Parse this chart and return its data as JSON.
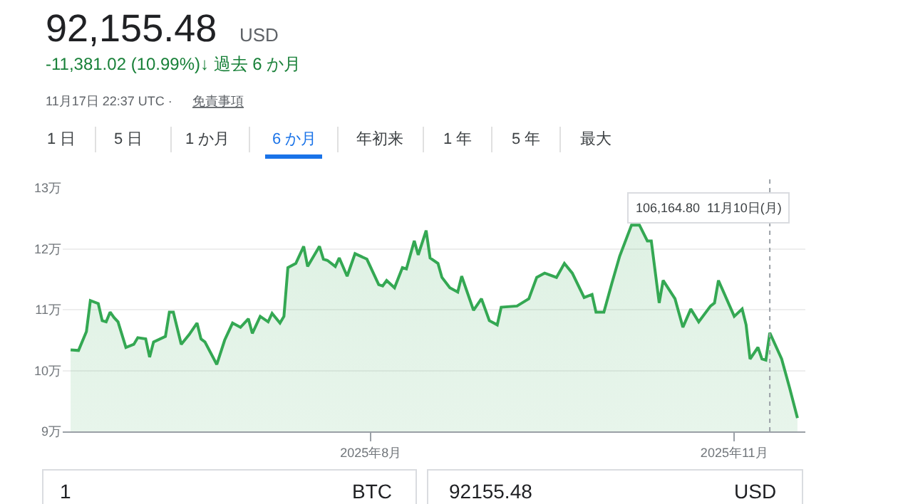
{
  "chart_data": {
    "type": "area",
    "title": "92,155.48",
    "subtitle": "USD",
    "x": [
      "2025-05-17",
      "2025-05-19",
      "2025-05-21",
      "2025-05-22",
      "2025-05-24",
      "2025-05-25",
      "2025-05-26",
      "2025-05-27",
      "2025-05-28",
      "2025-05-29",
      "2025-05-31",
      "2025-06-02",
      "2025-06-03",
      "2025-06-05",
      "2025-06-06",
      "2025-06-07",
      "2025-06-10",
      "2025-06-11",
      "2025-06-12",
      "2025-06-14",
      "2025-06-16",
      "2025-06-18",
      "2025-06-19",
      "2025-06-20",
      "2025-06-23",
      "2025-06-25",
      "2025-06-27",
      "2025-06-29",
      "2025-07-01",
      "2025-07-02",
      "2025-07-04",
      "2025-07-06",
      "2025-07-07",
      "2025-07-09",
      "2025-07-10",
      "2025-07-11",
      "2025-07-13",
      "2025-07-15",
      "2025-07-16",
      "2025-07-19",
      "2025-07-20",
      "2025-07-21",
      "2025-07-23",
      "2025-07-24",
      "2025-07-26",
      "2025-07-28",
      "2025-07-31",
      "2025-08-03",
      "2025-08-04",
      "2025-08-05",
      "2025-08-07",
      "2025-08-09",
      "2025-08-10",
      "2025-08-12",
      "2025-08-13",
      "2025-08-15",
      "2025-08-16",
      "2025-08-18",
      "2025-08-19",
      "2025-08-21",
      "2025-08-23",
      "2025-08-24",
      "2025-08-27",
      "2025-08-29",
      "2025-08-31",
      "2025-09-02",
      "2025-09-03",
      "2025-09-07",
      "2025-09-10",
      "2025-09-12",
      "2025-09-14",
      "2025-09-17",
      "2025-09-19",
      "2025-09-21",
      "2025-09-24",
      "2025-09-26",
      "2025-09-27",
      "2025-09-29",
      "2025-10-01",
      "2025-10-03",
      "2025-10-06",
      "2025-10-08",
      "2025-10-10",
      "2025-10-11",
      "2025-10-13",
      "2025-10-14",
      "2025-10-17",
      "2025-10-19",
      "2025-10-21",
      "2025-10-23",
      "2025-10-26",
      "2025-10-27",
      "2025-10-28",
      "2025-11-01",
      "2025-11-03",
      "2025-11-04",
      "2025-11-05",
      "2025-11-07",
      "2025-11-08",
      "2025-11-09",
      "2025-11-10",
      "2025-11-13",
      "2025-11-15",
      "2025-11-17"
    ],
    "series": [
      {
        "color": "#34a853",
        "values": [
          10.34,
          10.33,
          10.64,
          11.15,
          11.1,
          10.82,
          10.8,
          10.96,
          10.87,
          10.8,
          10.38,
          10.43,
          10.54,
          10.52,
          10.22,
          10.47,
          10.56,
          10.96,
          10.96,
          10.43,
          10.59,
          10.78,
          10.52,
          10.47,
          10.1,
          10.5,
          10.78,
          10.71,
          10.85,
          10.61,
          10.89,
          10.8,
          10.94,
          10.78,
          10.89,
          11.69,
          11.76,
          12.04,
          11.71,
          12.04,
          11.83,
          11.81,
          11.71,
          11.85,
          11.55,
          11.92,
          11.83,
          11.41,
          11.39,
          11.48,
          11.36,
          11.69,
          11.67,
          12.13,
          11.9,
          12.3,
          11.85,
          11.76,
          11.53,
          11.36,
          11.29,
          11.55,
          10.99,
          11.18,
          10.82,
          10.75,
          11.04,
          11.06,
          11.18,
          11.53,
          11.6,
          11.53,
          11.76,
          11.6,
          11.2,
          11.25,
          10.96,
          10.96,
          11.43,
          11.88,
          12.39,
          12.39,
          12.13,
          12.13,
          11.11,
          11.48,
          11.18,
          10.71,
          11.01,
          10.8,
          11.06,
          11.11,
          11.48,
          10.89,
          11.01,
          10.75,
          10.19,
          10.38,
          10.19,
          10.17,
          10.62,
          10.19,
          9.72,
          9.22
        ]
      }
    ],
    "xlim": [
      "2025-05-15",
      "2025-11-19"
    ],
    "xticks": [
      {
        "value": "2025-08-01",
        "label": "2025年8月"
      },
      {
        "value": "2025-11-01",
        "label": "2025年11月"
      }
    ],
    "ylim": [
      9,
      13
    ],
    "yticks": [
      {
        "value": 9,
        "label": "9万"
      },
      {
        "value": 10,
        "label": "10万"
      },
      {
        "value": 11,
        "label": "11万"
      },
      {
        "value": 12,
        "label": "12万"
      },
      {
        "value": 13,
        "label": "13万"
      }
    ],
    "grid": "y",
    "marker": "none",
    "line_style": "solid",
    "ref_lines": [
      {
        "axis": "x",
        "value": "2025-11-10",
        "line_style": "dotted",
        "color": "#9aa0a6"
      }
    ],
    "annotations": [
      "106,164.80  11月10日(月)",
      "-11,381.02 (10.99%)↓ 過去 6 か月",
      "11月17日 22:37 UTC ·",
      "免責事項",
      "1 日",
      "5 日",
      "1 か月",
      "6 か月",
      "年初来",
      "1 年",
      "5 年",
      "最大",
      "1",
      "BTC",
      "92155.48",
      "USD"
    ]
  }
}
